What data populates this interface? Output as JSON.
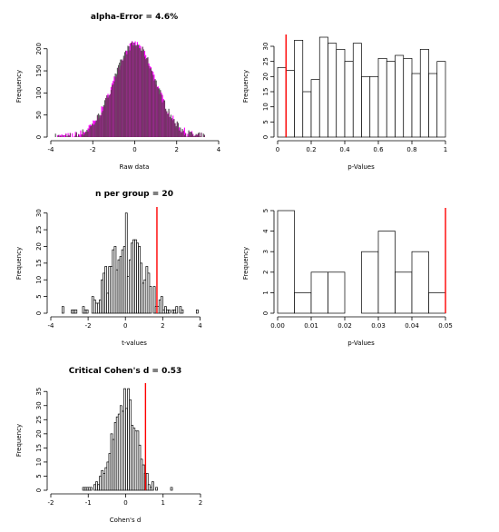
{
  "chart_data": [
    {
      "id": "raw",
      "type": "bar",
      "title": "alpha-Error = 4.6%",
      "xlabel": "Raw data",
      "ylabel": "Frequency",
      "xlim": [
        -4,
        4
      ],
      "ylim": [
        0,
        220
      ],
      "xticks": [
        -4,
        -2,
        0,
        2,
        4
      ],
      "yticks": [
        0,
        50,
        100,
        150,
        200
      ],
      "distribution": "normal",
      "mean": 0,
      "sd": 1,
      "peak_frequency": 210,
      "colors": {
        "group1": "#ff00ff",
        "group2": "#555555",
        "overlap": "#7a2d6b"
      }
    },
    {
      "id": "pvals_all",
      "type": "bar",
      "title": "",
      "xlabel": "p-Values",
      "ylabel": "Frequency",
      "xlim": [
        0,
        1
      ],
      "ylim": [
        0,
        33
      ],
      "xticks": [
        0.0,
        0.2,
        0.4,
        0.6,
        0.8,
        1.0
      ],
      "yticks": [
        0,
        5,
        10,
        15,
        20,
        25,
        30
      ],
      "bin_width": 0.05,
      "values": [
        23,
        22,
        32,
        15,
        19,
        33,
        31,
        29,
        25,
        31,
        20,
        20,
        26,
        25,
        27,
        26,
        21,
        29,
        21,
        25
      ],
      "reference_line": 0.05,
      "line_color": "#ff0000"
    },
    {
      "id": "tvals",
      "type": "bar",
      "title": "n per group = 20",
      "xlabel": "t-values",
      "ylabel": "Frequency",
      "xlim": [
        -4,
        5
      ],
      "ylim": [
        0,
        31
      ],
      "xticks": [
        -4,
        -2,
        0,
        2,
        4
      ],
      "yticks": [
        0,
        5,
        10,
        15,
        20,
        25,
        30
      ],
      "bin_width": 0.1,
      "values": [
        0,
        0,
        0,
        0,
        0,
        0,
        2,
        0,
        0,
        0,
        0,
        1,
        1,
        1,
        0,
        0,
        0,
        2,
        1,
        1,
        0,
        0,
        5,
        4,
        3,
        3,
        4,
        10,
        12,
        14,
        6,
        14,
        14,
        19,
        20,
        13,
        16,
        17,
        19,
        20,
        30,
        11,
        16,
        21,
        22,
        22,
        21,
        20,
        15,
        9,
        10,
        14,
        12,
        8,
        0,
        8,
        2,
        2,
        4,
        5,
        1,
        2,
        1,
        1,
        0,
        1,
        1,
        2,
        0,
        2,
        1,
        0,
        0,
        0,
        0,
        0,
        0,
        0,
        1,
        0,
        0,
        0,
        0,
        0,
        0,
        0,
        0,
        0,
        0,
        0
      ],
      "reference_line": 1.69,
      "line_color": "#ff0000"
    },
    {
      "id": "pvals_sig",
      "type": "bar",
      "title": "",
      "xlabel": "p-Values",
      "ylabel": "Frequency",
      "xlim": [
        0,
        0.05
      ],
      "ylim": [
        0,
        5
      ],
      "xticks": [
        0.0,
        0.01,
        0.02,
        0.03,
        0.04,
        0.05
      ],
      "tick_labels": [
        "0.00",
        "0.01",
        "0.02",
        "0.03",
        "0.04",
        "0.05"
      ],
      "yticks": [
        0,
        1,
        2,
        3,
        4,
        5
      ],
      "bin_width": 0.005,
      "values": [
        5,
        1,
        2,
        2,
        0,
        3,
        4,
        2,
        3,
        1
      ],
      "reference_line": 0.05,
      "line_color": "#ff0000"
    },
    {
      "id": "cohens_d",
      "type": "bar",
      "title": "Critical Cohen's d = 0.53",
      "xlabel": "Cohen's d",
      "ylabel": "Frequency",
      "xlim": [
        -2,
        2
      ],
      "ylim": [
        0,
        37
      ],
      "xticks": [
        -2,
        -1,
        0,
        1,
        2
      ],
      "yticks": [
        0,
        5,
        10,
        15,
        20,
        25,
        30,
        35
      ],
      "bin_width": 0.05,
      "bins_start": -1.2,
      "values": [
        0,
        1,
        1,
        1,
        1,
        1,
        0,
        2,
        3,
        2,
        5,
        7,
        6,
        8,
        10,
        13,
        20,
        18,
        24,
        26,
        27,
        30,
        28,
        36,
        29,
        36,
        32,
        23,
        22,
        21,
        21,
        16,
        11,
        9,
        6,
        6,
        2,
        1,
        3,
        0,
        1,
        0,
        0,
        0,
        0,
        0,
        0,
        0,
        1,
        0
      ],
      "reference_line": 0.53,
      "line_color": "#ff0000"
    }
  ]
}
